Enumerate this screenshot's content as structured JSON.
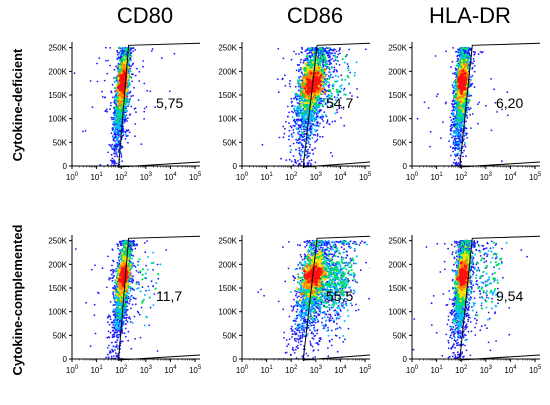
{
  "chart_data": {
    "type": "scatter",
    "columns": [
      "CD80",
      "CD86",
      "HLA-DR"
    ],
    "rows": [
      "Cytokine-deficient",
      "Cytokine-complemented"
    ],
    "x_scale": "log",
    "x_ticks": [
      "0",
      "1",
      "2",
      "3",
      "4",
      "5"
    ],
    "x_tick_bases": [
      "10",
      "10",
      "10",
      "10",
      "10",
      "10"
    ],
    "y_ticks": [
      "0",
      "50K",
      "100K",
      "150K",
      "200K",
      "250K"
    ],
    "ylim": [
      0,
      262000
    ],
    "panels": [
      {
        "row": "Cytokine-deficient",
        "marker": "CD80",
        "gate_value": "5,75",
        "cloud": {
          "tilt": 0.45,
          "top_dx": 0.07,
          "spread": 0.09,
          "bulge": 0
        },
        "gate": {
          "bx": 1.9,
          "tx": 2.3
        }
      },
      {
        "row": "Cytokine-deficient",
        "marker": "CD86",
        "gate_value": "54,7",
        "cloud": {
          "tilt": 0.75,
          "top_dx": 0.1,
          "spread": 0.2,
          "bulge": 0.1
        },
        "gate": {
          "bx": 2.5,
          "tx": 3.05
        }
      },
      {
        "row": "Cytokine-deficient",
        "marker": "HLA-DR",
        "gate_value": "6,20",
        "cloud": {
          "tilt": 0.35,
          "top_dx": 0.1,
          "spread": 0.1,
          "bulge": 0
        },
        "gate": {
          "bx": 1.95,
          "tx": 2.45
        }
      },
      {
        "row": "Cytokine-complemented",
        "marker": "CD80",
        "gate_value": "11,7",
        "cloud": {
          "tilt": 0.5,
          "top_dx": 0.1,
          "spread": 0.1,
          "bulge": 0.05
        },
        "gate": {
          "bx": 1.9,
          "tx": 2.3
        }
      },
      {
        "row": "Cytokine-complemented",
        "marker": "CD86",
        "gate_value": "55,5",
        "cloud": {
          "tilt": 0.8,
          "top_dx": 0.12,
          "spread": 0.22,
          "bulge": 0.6
        },
        "gate": {
          "bx": 2.5,
          "tx": 3.05
        }
      },
      {
        "row": "Cytokine-complemented",
        "marker": "HLA-DR",
        "gate_value": "9,54",
        "cloud": {
          "tilt": 0.4,
          "top_dx": 0.1,
          "spread": 0.11,
          "bulge": 0.15
        },
        "gate": {
          "bx": 1.95,
          "tx": 2.45
        }
      }
    ]
  },
  "colors": {
    "density": [
      "#1a1aff",
      "#00c0ff",
      "#00e060",
      "#ffe000",
      "#ff8000",
      "#ff1010"
    ],
    "gate_line": "#000000",
    "axis": "#000000"
  }
}
